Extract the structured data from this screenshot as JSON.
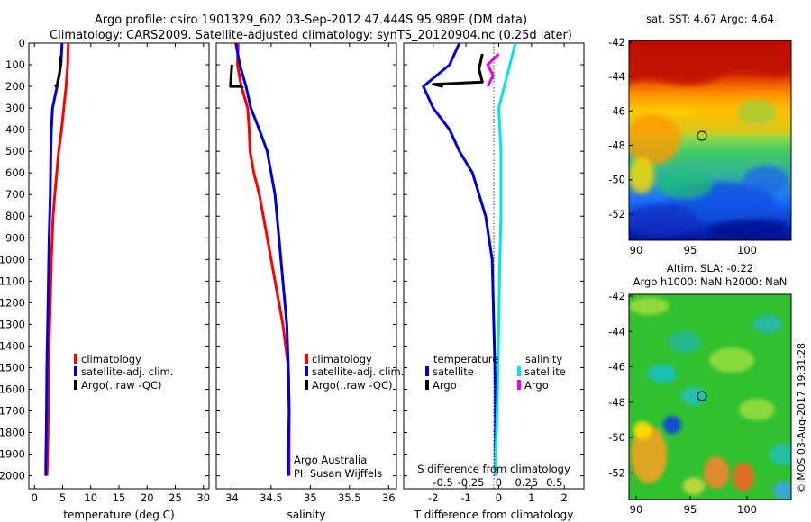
{
  "header": {
    "line1": "Argo profile: csiro 1901329_602 03-Sep-2012 47.444S 95.989E (DM data)",
    "line2": "Climatology: CARS2009. Satellite-adjusted climatology: synTS_20120904.nc (0.25d later)"
  },
  "colors": {
    "climatology": "#ff0000",
    "satellite": "#0000dd",
    "argo": "#000000",
    "sal_satellite": "#00e5e5",
    "sal_argo": "#ee00ee"
  },
  "legend_profile": [
    "climatology",
    "satellite-adj. clim.",
    "Argo(..raw -QC)"
  ],
  "legend_diff": {
    "temperature_title": "temperature",
    "salinity_title": "salinity",
    "satellite": "satellite",
    "argo": "Argo"
  },
  "credits": {
    "line1": "Argo Australia",
    "line2": "PI: Susan Wijffels"
  },
  "watermark": "©IMOS 03-Aug-2017 19:31:28",
  "maps": {
    "sst_title": "sat. SST: 4.67 Argo: 4.64",
    "sla_title1": "Altim. SLA: -0.22",
    "sla_title2": "Argo h1000: NaN h2000: NaN",
    "lat_ticks": [
      "-42",
      "-44",
      "-46",
      "-48",
      "-50",
      "-52"
    ],
    "lon_ticks": [
      "90",
      "95",
      "100"
    ]
  },
  "chart_data": [
    {
      "type": "line",
      "name": "temperature profile",
      "xlabel": "temperature (deg C)",
      "ylabel": "",
      "xlim": [
        -1,
        31
      ],
      "ylim": [
        2060,
        0
      ],
      "xticks": [
        "0",
        "5",
        "10",
        "15",
        "20",
        "25",
        "30"
      ],
      "yticks": [
        "0",
        "100",
        "200",
        "300",
        "400",
        "500",
        "600",
        "700",
        "800",
        "900",
        "1000",
        "1100",
        "1200",
        "1300",
        "1400",
        "1500",
        "1600",
        "1700",
        "1800",
        "1900",
        "2000"
      ],
      "series": [
        {
          "name": "climatology",
          "x": [
            6.0,
            5.9,
            5.6,
            5.2,
            4.8,
            4.3,
            3.6,
            3.3,
            3.0,
            2.8,
            2.6,
            2.5,
            2.4,
            2.3,
            2.2
          ],
          "y": [
            0,
            100,
            200,
            300,
            400,
            500,
            700,
            800,
            1000,
            1200,
            1400,
            1600,
            1800,
            1950,
            2000
          ]
        },
        {
          "name": "satellite-adj. clim.",
          "x": [
            4.9,
            4.7,
            4.0,
            3.2,
            3.0,
            2.9,
            2.8,
            2.6,
            2.4,
            2.2,
            2.1,
            2.0,
            2.0
          ],
          "y": [
            0,
            100,
            200,
            300,
            400,
            500,
            700,
            900,
            1200,
            1500,
            1800,
            1950,
            2000
          ]
        },
        {
          "name": "Argo(..raw -QC)",
          "x": [
            4.6,
            4.6,
            4.4,
            4.1,
            4.2,
            3.6
          ],
          "y": [
            60,
            100,
            150,
            180,
            190,
            200
          ]
        }
      ]
    },
    {
      "type": "line",
      "name": "salinity profile",
      "xlabel": "salinity",
      "xlim": [
        33.8,
        36.1
      ],
      "ylim": [
        2060,
        0
      ],
      "xticks": [
        "34",
        "34.5",
        "35",
        "35.5",
        "36"
      ],
      "series": [
        {
          "name": "climatology",
          "x": [
            34.08,
            34.07,
            34.12,
            34.2,
            34.22,
            34.23,
            34.28,
            34.35,
            34.5,
            34.65,
            34.72,
            34.73,
            34.73,
            34.73
          ],
          "y": [
            0,
            100,
            200,
            300,
            400,
            500,
            600,
            700,
            1000,
            1300,
            1500,
            1700,
            1900,
            2000
          ]
        },
        {
          "name": "satellite-adj. clim.",
          "x": [
            34.05,
            34.1,
            34.18,
            34.24,
            34.35,
            34.45,
            34.55,
            34.6,
            34.65,
            34.7,
            34.72,
            34.73,
            34.72,
            34.72
          ],
          "y": [
            0,
            100,
            200,
            300,
            400,
            500,
            700,
            900,
            1100,
            1300,
            1500,
            1700,
            1900,
            2000
          ]
        },
        {
          "name": "Argo(..raw -QC)",
          "x": [
            34.0,
            33.99,
            33.98,
            34.12,
            34.14
          ],
          "y": [
            100,
            150,
            200,
            200,
            210
          ]
        }
      ]
    },
    {
      "type": "line",
      "name": "difference from climatology",
      "xlabel": "T difference from climatology",
      "xlabel_top": "S difference from climatology",
      "xlim": [
        -2.9,
        2.6
      ],
      "ylim": [
        2060,
        0
      ],
      "xticks_T": [
        "-2",
        "-1",
        "0",
        "1",
        "2"
      ],
      "xticks_S": [
        "-0.5",
        "-0.25",
        "0",
        "0.25",
        "0.5"
      ],
      "s_scale_note": "",
      "series": [
        {
          "name": "temperature satellite",
          "x": [
            -1.2,
            -1.5,
            -2.3,
            -2.0,
            -1.5,
            -1.2,
            -0.8,
            -0.4,
            -0.2,
            -0.15,
            -0.1,
            -0.1
          ],
          "y": [
            0,
            100,
            200,
            300,
            400,
            500,
            600,
            800,
            1000,
            1300,
            1600,
            2000
          ]
        },
        {
          "name": "temperature Argo",
          "x": [
            -0.5,
            -0.6,
            -0.5,
            -2.0,
            -1.7
          ],
          "y": [
            50,
            120,
            180,
            190,
            200
          ]
        },
        {
          "name": "salinity satellite",
          "x": [
            0.15,
            0.1,
            0.05,
            0.0,
            0.01,
            0.02,
            0.02,
            0.02,
            0.01,
            0.0,
            -0.01,
            -0.02,
            -0.03,
            -0.03
          ],
          "y": [
            0,
            100,
            200,
            300,
            400,
            500,
            600,
            800,
            1000,
            1300,
            1600,
            1800,
            1950,
            2000
          ]
        },
        {
          "name": "salinity Argo",
          "x": [
            0.0,
            -0.1,
            -0.05,
            -0.1
          ],
          "y": [
            50,
            100,
            150,
            200
          ]
        }
      ]
    }
  ]
}
